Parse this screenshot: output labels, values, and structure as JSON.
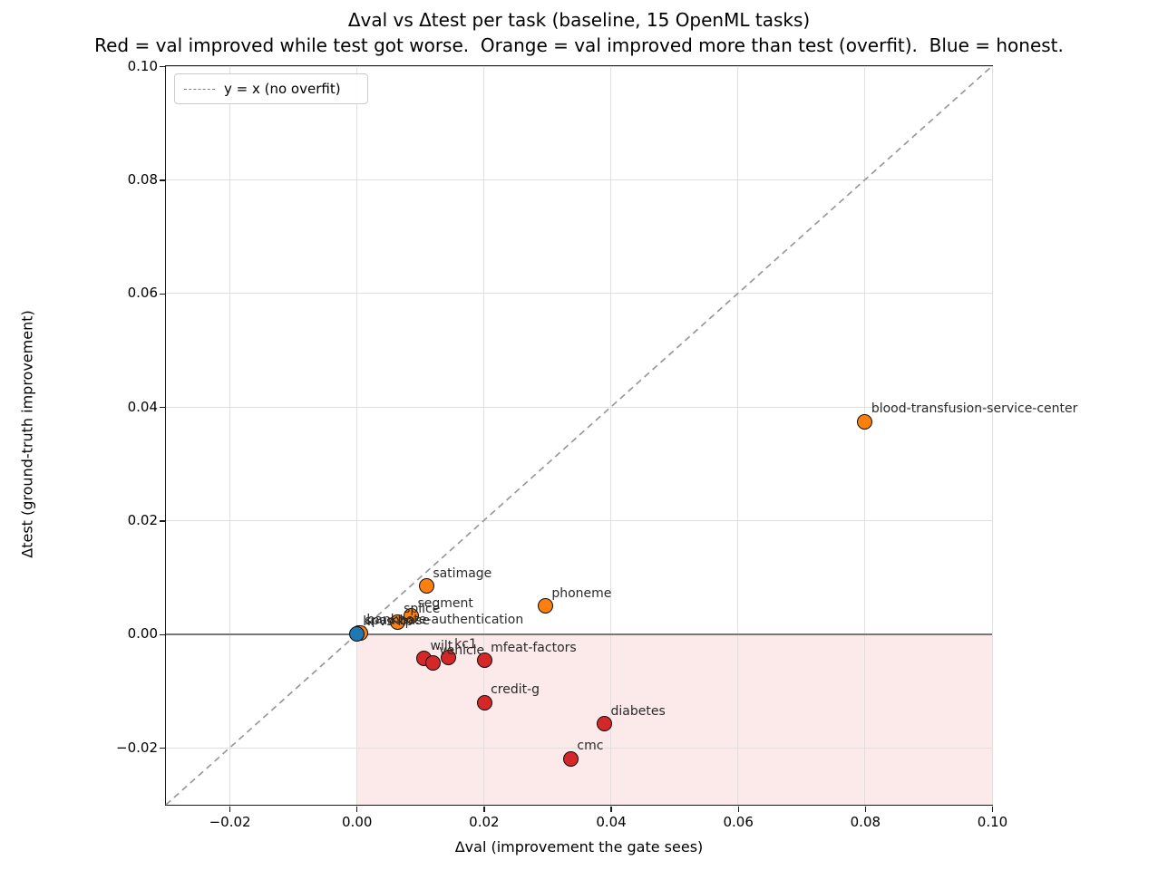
{
  "chart_data": {
    "type": "scatter",
    "title": "Δval vs Δtest per task (baseline, 15 OpenML tasks)",
    "subtitle": "Red = val improved while test got worse.  Orange = val improved more than test (overfit).  Blue = honest.",
    "xlabel": "Δval (improvement the gate sees)",
    "ylabel": "Δtest (ground-truth improvement)",
    "xlim": [
      -0.03,
      0.1
    ],
    "ylim": [
      -0.03,
      0.1
    ],
    "xticks": [
      -0.02,
      0.0,
      0.02,
      0.04,
      0.06,
      0.08,
      0.1
    ],
    "yticks": [
      -0.02,
      0.0,
      0.02,
      0.04,
      0.06,
      0.08,
      0.1
    ],
    "grid": true,
    "legend": {
      "label": "y = x (no overfit)",
      "position": "upper-left",
      "line_style": "dashed"
    },
    "diagonal_line": {
      "equation": "y = x",
      "style": "dashed"
    },
    "zero_line_y": 0.0,
    "shaded_region": {
      "x_range": [
        0.0,
        0.1
      ],
      "y_range": [
        -0.03,
        0.0
      ]
    },
    "colors": {
      "blue": "#1f77b4",
      "orange": "#ff7f0e",
      "red": "#d62728",
      "shade": "#fce9e9",
      "grid": "#e0e0e0",
      "zero_line": "#777777",
      "diagonal": "#999999",
      "marker_edge": "#0d0d0d"
    },
    "points": [
      {
        "task": "spambase",
        "x": 0.0003,
        "y": 0.0002,
        "color": "orange"
      },
      {
        "task": "banknote-authentication",
        "x": 0.0006,
        "y": 0.0003,
        "color": "orange"
      },
      {
        "task": "kr-vs-kp",
        "x": 0.0,
        "y": 0.0,
        "color": "blue"
      },
      {
        "task": "splice",
        "x": 0.0064,
        "y": 0.0022,
        "color": "orange"
      },
      {
        "task": "segment",
        "x": 0.0086,
        "y": 0.0032,
        "color": "orange"
      },
      {
        "task": "satimage",
        "x": 0.011,
        "y": 0.0085,
        "color": "orange"
      },
      {
        "task": "phoneme",
        "x": 0.0297,
        "y": 0.005,
        "color": "orange"
      },
      {
        "task": "blood-transfusion-service-center",
        "x": 0.08,
        "y": 0.0374,
        "color": "orange"
      },
      {
        "task": "wilt",
        "x": 0.0106,
        "y": -0.0043,
        "color": "red"
      },
      {
        "task": "vehicle",
        "x": 0.012,
        "y": -0.0051,
        "color": "red"
      },
      {
        "task": "kc1",
        "x": 0.0144,
        "y": -0.004,
        "color": "red"
      },
      {
        "task": "mfeat-factors",
        "x": 0.0201,
        "y": -0.0046,
        "color": "red"
      },
      {
        "task": "credit-g",
        "x": 0.0201,
        "y": -0.012,
        "color": "red"
      },
      {
        "task": "diabetes",
        "x": 0.039,
        "y": -0.0158,
        "color": "red"
      },
      {
        "task": "cmc",
        "x": 0.0337,
        "y": -0.0219,
        "color": "red"
      }
    ]
  }
}
